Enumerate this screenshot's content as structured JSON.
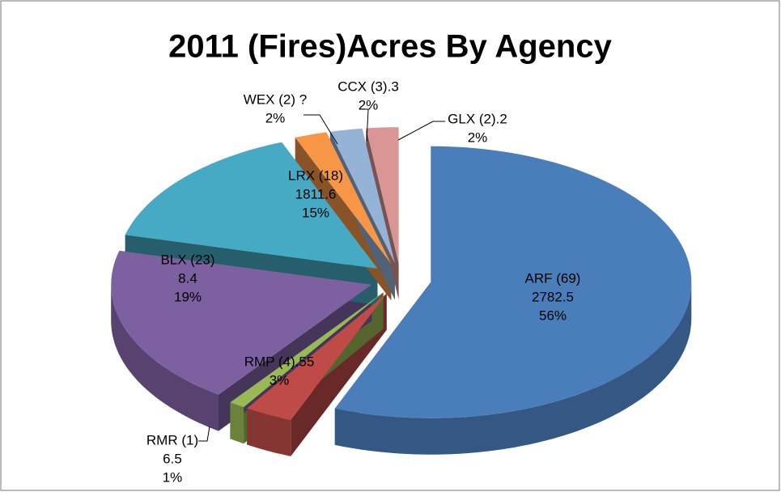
{
  "chart_data": {
    "type": "pie",
    "title": "2011 (Fires)Acres By Agency",
    "categories": [
      "ARF (69)",
      "RMP (4).55",
      "RMR (1)",
      "BLX (23)",
      "LRX (18)",
      "WEX (2) ?",
      "CCX (3).3",
      "GLX (2).2"
    ],
    "category_details": [
      "2782.5",
      null,
      "6.5",
      "8.4",
      "1811.6",
      null,
      null,
      null
    ],
    "values": [
      56,
      3,
      1,
      19,
      15,
      2,
      2,
      2
    ],
    "value_labels": [
      "56%",
      "3%",
      "1%",
      "19%",
      "15%",
      "2%",
      "2%",
      "2%"
    ],
    "colors": [
      "#4a7ebb",
      "#be4b48",
      "#98b954",
      "#7d60a0",
      "#46aac5",
      "#f79646",
      "#95b3d7",
      "#d99694"
    ],
    "exploded": true,
    "three_d": true
  }
}
